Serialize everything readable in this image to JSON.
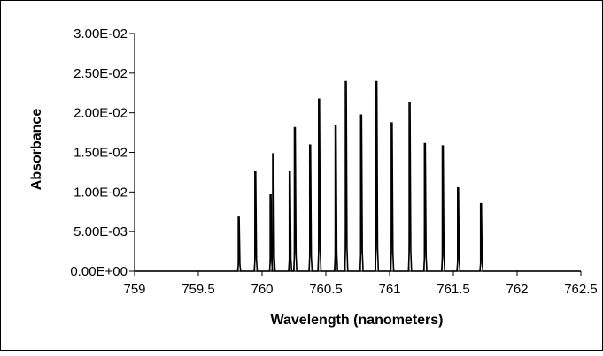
{
  "chart_data": {
    "type": "line",
    "title": "",
    "xlabel": "Wavelength (nanometers)",
    "ylabel": "Absorbance",
    "xlim": [
      759,
      762.5
    ],
    "ylim": [
      0,
      0.03
    ],
    "x_ticks": [
      {
        "value": 759,
        "label": "759"
      },
      {
        "value": 759.5,
        "label": "759.5"
      },
      {
        "value": 760,
        "label": "760"
      },
      {
        "value": 760.5,
        "label": "760.5"
      },
      {
        "value": 761,
        "label": "761"
      },
      {
        "value": 761.5,
        "label": "761.5"
      },
      {
        "value": 762,
        "label": "762"
      },
      {
        "value": 762.5,
        "label": "762.5"
      }
    ],
    "y_ticks": [
      {
        "value": 0,
        "label": "0.00E+00"
      },
      {
        "value": 0.005,
        "label": "5.00E-03"
      },
      {
        "value": 0.01,
        "label": "1.00E-02"
      },
      {
        "value": 0.015,
        "label": "1.50E-02"
      },
      {
        "value": 0.02,
        "label": "2.00E-02"
      },
      {
        "value": 0.025,
        "label": "2.50E-02"
      },
      {
        "value": 0.03,
        "label": "3.00E-02"
      }
    ],
    "grid": false,
    "legend": "none",
    "series": [
      {
        "color": "#000000",
        "peaks": [
          {
            "x": 759.82,
            "y": 0.0069
          },
          {
            "x": 759.95,
            "y": 0.0126
          },
          {
            "x": 760.07,
            "y": 0.0097
          },
          {
            "x": 760.09,
            "y": 0.0149
          },
          {
            "x": 760.22,
            "y": 0.0126
          },
          {
            "x": 760.26,
            "y": 0.0182
          },
          {
            "x": 760.38,
            "y": 0.016
          },
          {
            "x": 760.45,
            "y": 0.0218
          },
          {
            "x": 760.58,
            "y": 0.0185
          },
          {
            "x": 760.66,
            "y": 0.024
          },
          {
            "x": 760.78,
            "y": 0.0198
          },
          {
            "x": 760.9,
            "y": 0.024
          },
          {
            "x": 761.02,
            "y": 0.0188
          },
          {
            "x": 761.16,
            "y": 0.0214
          },
          {
            "x": 761.28,
            "y": 0.0162
          },
          {
            "x": 761.42,
            "y": 0.0159
          },
          {
            "x": 761.54,
            "y": 0.0106
          },
          {
            "x": 761.72,
            "y": 0.0086
          }
        ]
      }
    ]
  }
}
